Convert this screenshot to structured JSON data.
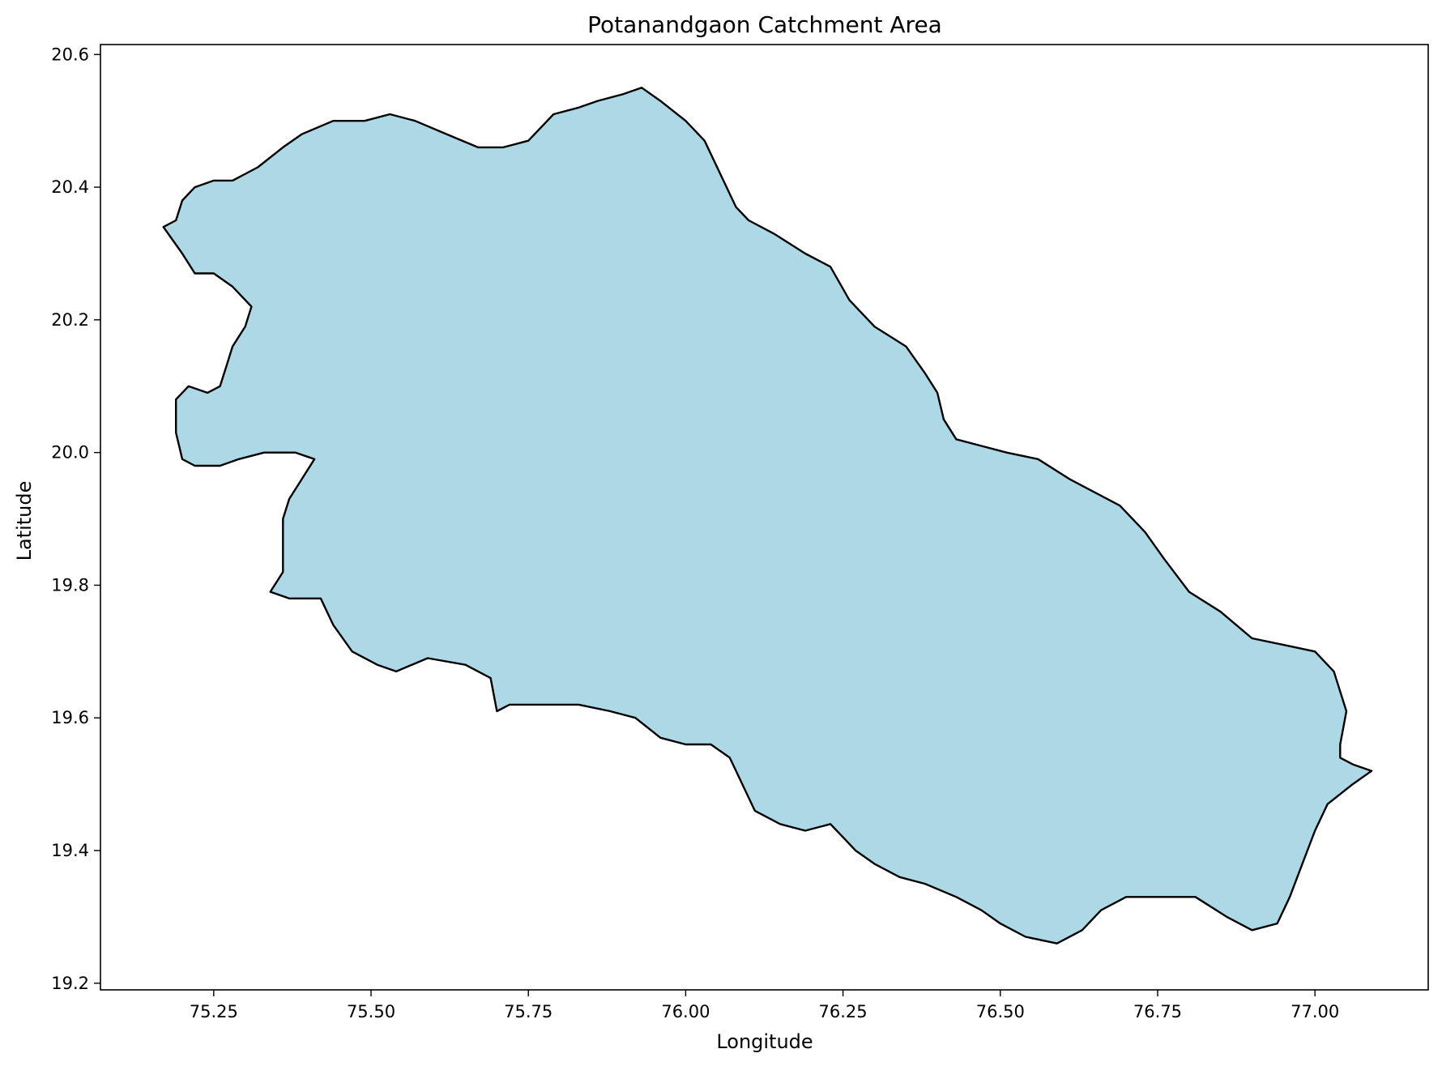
{
  "chart_data": {
    "type": "map",
    "title": "Potanandgaon Catchment Area",
    "xlabel": "Longitude",
    "ylabel": "Latitude",
    "xlim": [
      75.07,
      77.18
    ],
    "ylim": [
      19.19,
      20.615
    ],
    "xticks": [
      75.25,
      75.5,
      75.75,
      76.0,
      76.25,
      76.5,
      76.75,
      77.0
    ],
    "xtick_labels": [
      "75.25",
      "75.50",
      "75.75",
      "76.00",
      "76.25",
      "76.50",
      "76.75",
      "77.00"
    ],
    "yticks": [
      19.2,
      19.4,
      19.6,
      19.8,
      20.0,
      20.2,
      20.4,
      20.6
    ],
    "ytick_labels": [
      "19.2",
      "19.4",
      "19.6",
      "19.8",
      "20.0",
      "20.2",
      "20.4",
      "20.6"
    ],
    "grid": false,
    "fill_color": "#add8e6",
    "edge_color": "#000000",
    "polygon": [
      [
        75.17,
        20.34
      ],
      [
        75.19,
        20.35
      ],
      [
        75.2,
        20.38
      ],
      [
        75.22,
        20.4
      ],
      [
        75.25,
        20.41
      ],
      [
        75.28,
        20.41
      ],
      [
        75.32,
        20.43
      ],
      [
        75.36,
        20.46
      ],
      [
        75.39,
        20.48
      ],
      [
        75.44,
        20.5
      ],
      [
        75.49,
        20.5
      ],
      [
        75.53,
        20.51
      ],
      [
        75.57,
        20.5
      ],
      [
        75.62,
        20.48
      ],
      [
        75.67,
        20.46
      ],
      [
        75.71,
        20.46
      ],
      [
        75.75,
        20.47
      ],
      [
        75.79,
        20.51
      ],
      [
        75.83,
        20.52
      ],
      [
        75.86,
        20.53
      ],
      [
        75.9,
        20.54
      ],
      [
        75.93,
        20.55
      ],
      [
        75.96,
        20.53
      ],
      [
        76.0,
        20.5
      ],
      [
        76.03,
        20.47
      ],
      [
        76.06,
        20.41
      ],
      [
        76.08,
        20.37
      ],
      [
        76.1,
        20.35
      ],
      [
        76.14,
        20.33
      ],
      [
        76.19,
        20.3
      ],
      [
        76.23,
        20.28
      ],
      [
        76.26,
        20.23
      ],
      [
        76.3,
        20.19
      ],
      [
        76.35,
        20.16
      ],
      [
        76.38,
        20.12
      ],
      [
        76.4,
        20.09
      ],
      [
        76.41,
        20.05
      ],
      [
        76.43,
        20.02
      ],
      [
        76.47,
        20.01
      ],
      [
        76.51,
        20.0
      ],
      [
        76.56,
        19.99
      ],
      [
        76.61,
        19.96
      ],
      [
        76.65,
        19.94
      ],
      [
        76.69,
        19.92
      ],
      [
        76.73,
        19.88
      ],
      [
        76.76,
        19.84
      ],
      [
        76.8,
        19.79
      ],
      [
        76.85,
        19.76
      ],
      [
        76.9,
        19.72
      ],
      [
        76.95,
        19.71
      ],
      [
        77.0,
        19.7
      ],
      [
        77.03,
        19.67
      ],
      [
        77.05,
        19.61
      ],
      [
        77.04,
        19.56
      ],
      [
        77.04,
        19.54
      ],
      [
        77.06,
        19.53
      ],
      [
        77.09,
        19.52
      ],
      [
        77.06,
        19.5
      ],
      [
        77.02,
        19.47
      ],
      [
        77.0,
        19.43
      ],
      [
        76.98,
        19.38
      ],
      [
        76.96,
        19.33
      ],
      [
        76.94,
        19.29
      ],
      [
        76.9,
        19.28
      ],
      [
        76.86,
        19.3
      ],
      [
        76.81,
        19.33
      ],
      [
        76.76,
        19.33
      ],
      [
        76.7,
        19.33
      ],
      [
        76.66,
        19.31
      ],
      [
        76.63,
        19.28
      ],
      [
        76.59,
        19.26
      ],
      [
        76.54,
        19.27
      ],
      [
        76.5,
        19.29
      ],
      [
        76.47,
        19.31
      ],
      [
        76.43,
        19.33
      ],
      [
        76.38,
        19.35
      ],
      [
        76.34,
        19.36
      ],
      [
        76.3,
        19.38
      ],
      [
        76.27,
        19.4
      ],
      [
        76.25,
        19.42
      ],
      [
        76.23,
        19.44
      ],
      [
        76.19,
        19.43
      ],
      [
        76.15,
        19.44
      ],
      [
        76.11,
        19.46
      ],
      [
        76.09,
        19.5
      ],
      [
        76.07,
        19.54
      ],
      [
        76.04,
        19.56
      ],
      [
        76.0,
        19.56
      ],
      [
        75.96,
        19.57
      ],
      [
        75.92,
        19.6
      ],
      [
        75.88,
        19.61
      ],
      [
        75.83,
        19.62
      ],
      [
        75.78,
        19.62
      ],
      [
        75.72,
        19.62
      ],
      [
        75.7,
        19.61
      ],
      [
        75.69,
        19.66
      ],
      [
        75.65,
        19.68
      ],
      [
        75.59,
        19.69
      ],
      [
        75.54,
        19.67
      ],
      [
        75.51,
        19.68
      ],
      [
        75.47,
        19.7
      ],
      [
        75.44,
        19.74
      ],
      [
        75.42,
        19.78
      ],
      [
        75.37,
        19.78
      ],
      [
        75.34,
        19.79
      ],
      [
        75.36,
        19.82
      ],
      [
        75.36,
        19.86
      ],
      [
        75.36,
        19.9
      ],
      [
        75.37,
        19.93
      ],
      [
        75.39,
        19.96
      ],
      [
        75.41,
        19.99
      ],
      [
        75.38,
        20.0
      ],
      [
        75.33,
        20.0
      ],
      [
        75.29,
        19.99
      ],
      [
        75.26,
        19.98
      ],
      [
        75.22,
        19.98
      ],
      [
        75.2,
        19.99
      ],
      [
        75.19,
        20.03
      ],
      [
        75.19,
        20.08
      ],
      [
        75.21,
        20.1
      ],
      [
        75.24,
        20.09
      ],
      [
        75.26,
        20.1
      ],
      [
        75.27,
        20.13
      ],
      [
        75.28,
        20.16
      ],
      [
        75.3,
        20.19
      ],
      [
        75.31,
        20.22
      ],
      [
        75.28,
        20.25
      ],
      [
        75.25,
        20.27
      ],
      [
        75.22,
        20.27
      ],
      [
        75.2,
        20.3
      ]
    ]
  }
}
